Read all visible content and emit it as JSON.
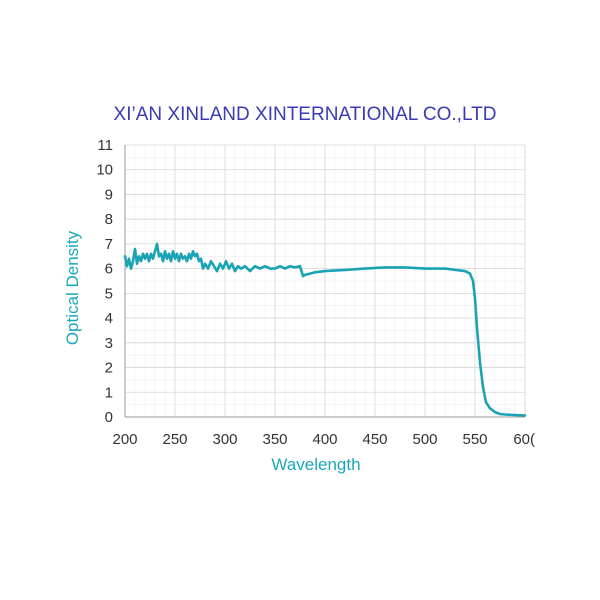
{
  "chart_data": {
    "type": "line",
    "title": "XI’AN XINLAND XINTERNATIONAL CO.,LTD",
    "xlabel": "Wavelength",
    "ylabel": "Optical Density",
    "xlim": [
      200,
      600
    ],
    "ylim": [
      0,
      11
    ],
    "x_ticks": [
      "200",
      "250",
      "300",
      "350",
      "400",
      "450",
      "500",
      "550",
      "60("
    ],
    "y_ticks": [
      "0",
      "1",
      "2",
      "3",
      "4",
      "5",
      "6",
      "7",
      "8",
      "9",
      "10",
      "11"
    ],
    "grid": true,
    "legend": "none",
    "colors": {
      "title": "#3a3ab4",
      "line": "#1aa3b5",
      "axis_label": "#1aa8b8"
    },
    "series": [
      {
        "x": [
          200,
          202,
          204,
          206,
          208,
          210,
          212,
          214,
          216,
          218,
          220,
          222,
          224,
          226,
          228,
          230,
          232,
          234,
          236,
          238,
          240,
          242,
          244,
          246,
          248,
          250,
          252,
          254,
          256,
          258,
          260,
          262,
          264,
          266,
          268,
          270,
          272,
          274,
          276,
          278,
          280,
          283,
          286,
          289,
          292,
          295,
          298,
          301,
          304,
          307,
          310,
          313,
          316,
          320,
          325,
          330,
          335,
          340,
          345,
          350,
          355,
          360,
          365,
          370,
          375,
          378,
          380,
          385,
          390,
          400,
          420,
          440,
          460,
          480,
          500,
          520,
          540,
          545,
          548,
          550,
          552,
          555,
          558,
          561,
          565,
          570,
          575,
          580,
          590,
          600
        ],
        "y": [
          6.5,
          6.1,
          6.4,
          6.0,
          6.3,
          6.8,
          6.2,
          6.5,
          6.3,
          6.6,
          6.4,
          6.6,
          6.3,
          6.6,
          6.4,
          6.7,
          7.0,
          6.5,
          6.6,
          6.3,
          6.7,
          6.4,
          6.6,
          6.3,
          6.7,
          6.4,
          6.6,
          6.3,
          6.6,
          6.4,
          6.5,
          6.3,
          6.6,
          6.4,
          6.7,
          6.5,
          6.6,
          6.3,
          6.4,
          6.0,
          6.2,
          6.0,
          6.3,
          6.1,
          5.9,
          6.2,
          6.0,
          6.3,
          6.0,
          6.2,
          5.9,
          6.1,
          6.0,
          6.1,
          5.9,
          6.1,
          6.0,
          6.1,
          6.0,
          6.0,
          6.1,
          6.0,
          6.1,
          6.05,
          6.1,
          5.7,
          5.75,
          5.8,
          5.85,
          5.9,
          5.95,
          6.0,
          6.05,
          6.05,
          6.0,
          6.0,
          5.9,
          5.8,
          5.5,
          4.8,
          3.6,
          2.2,
          1.2,
          0.6,
          0.35,
          0.2,
          0.12,
          0.1,
          0.08,
          0.06
        ]
      }
    ]
  }
}
